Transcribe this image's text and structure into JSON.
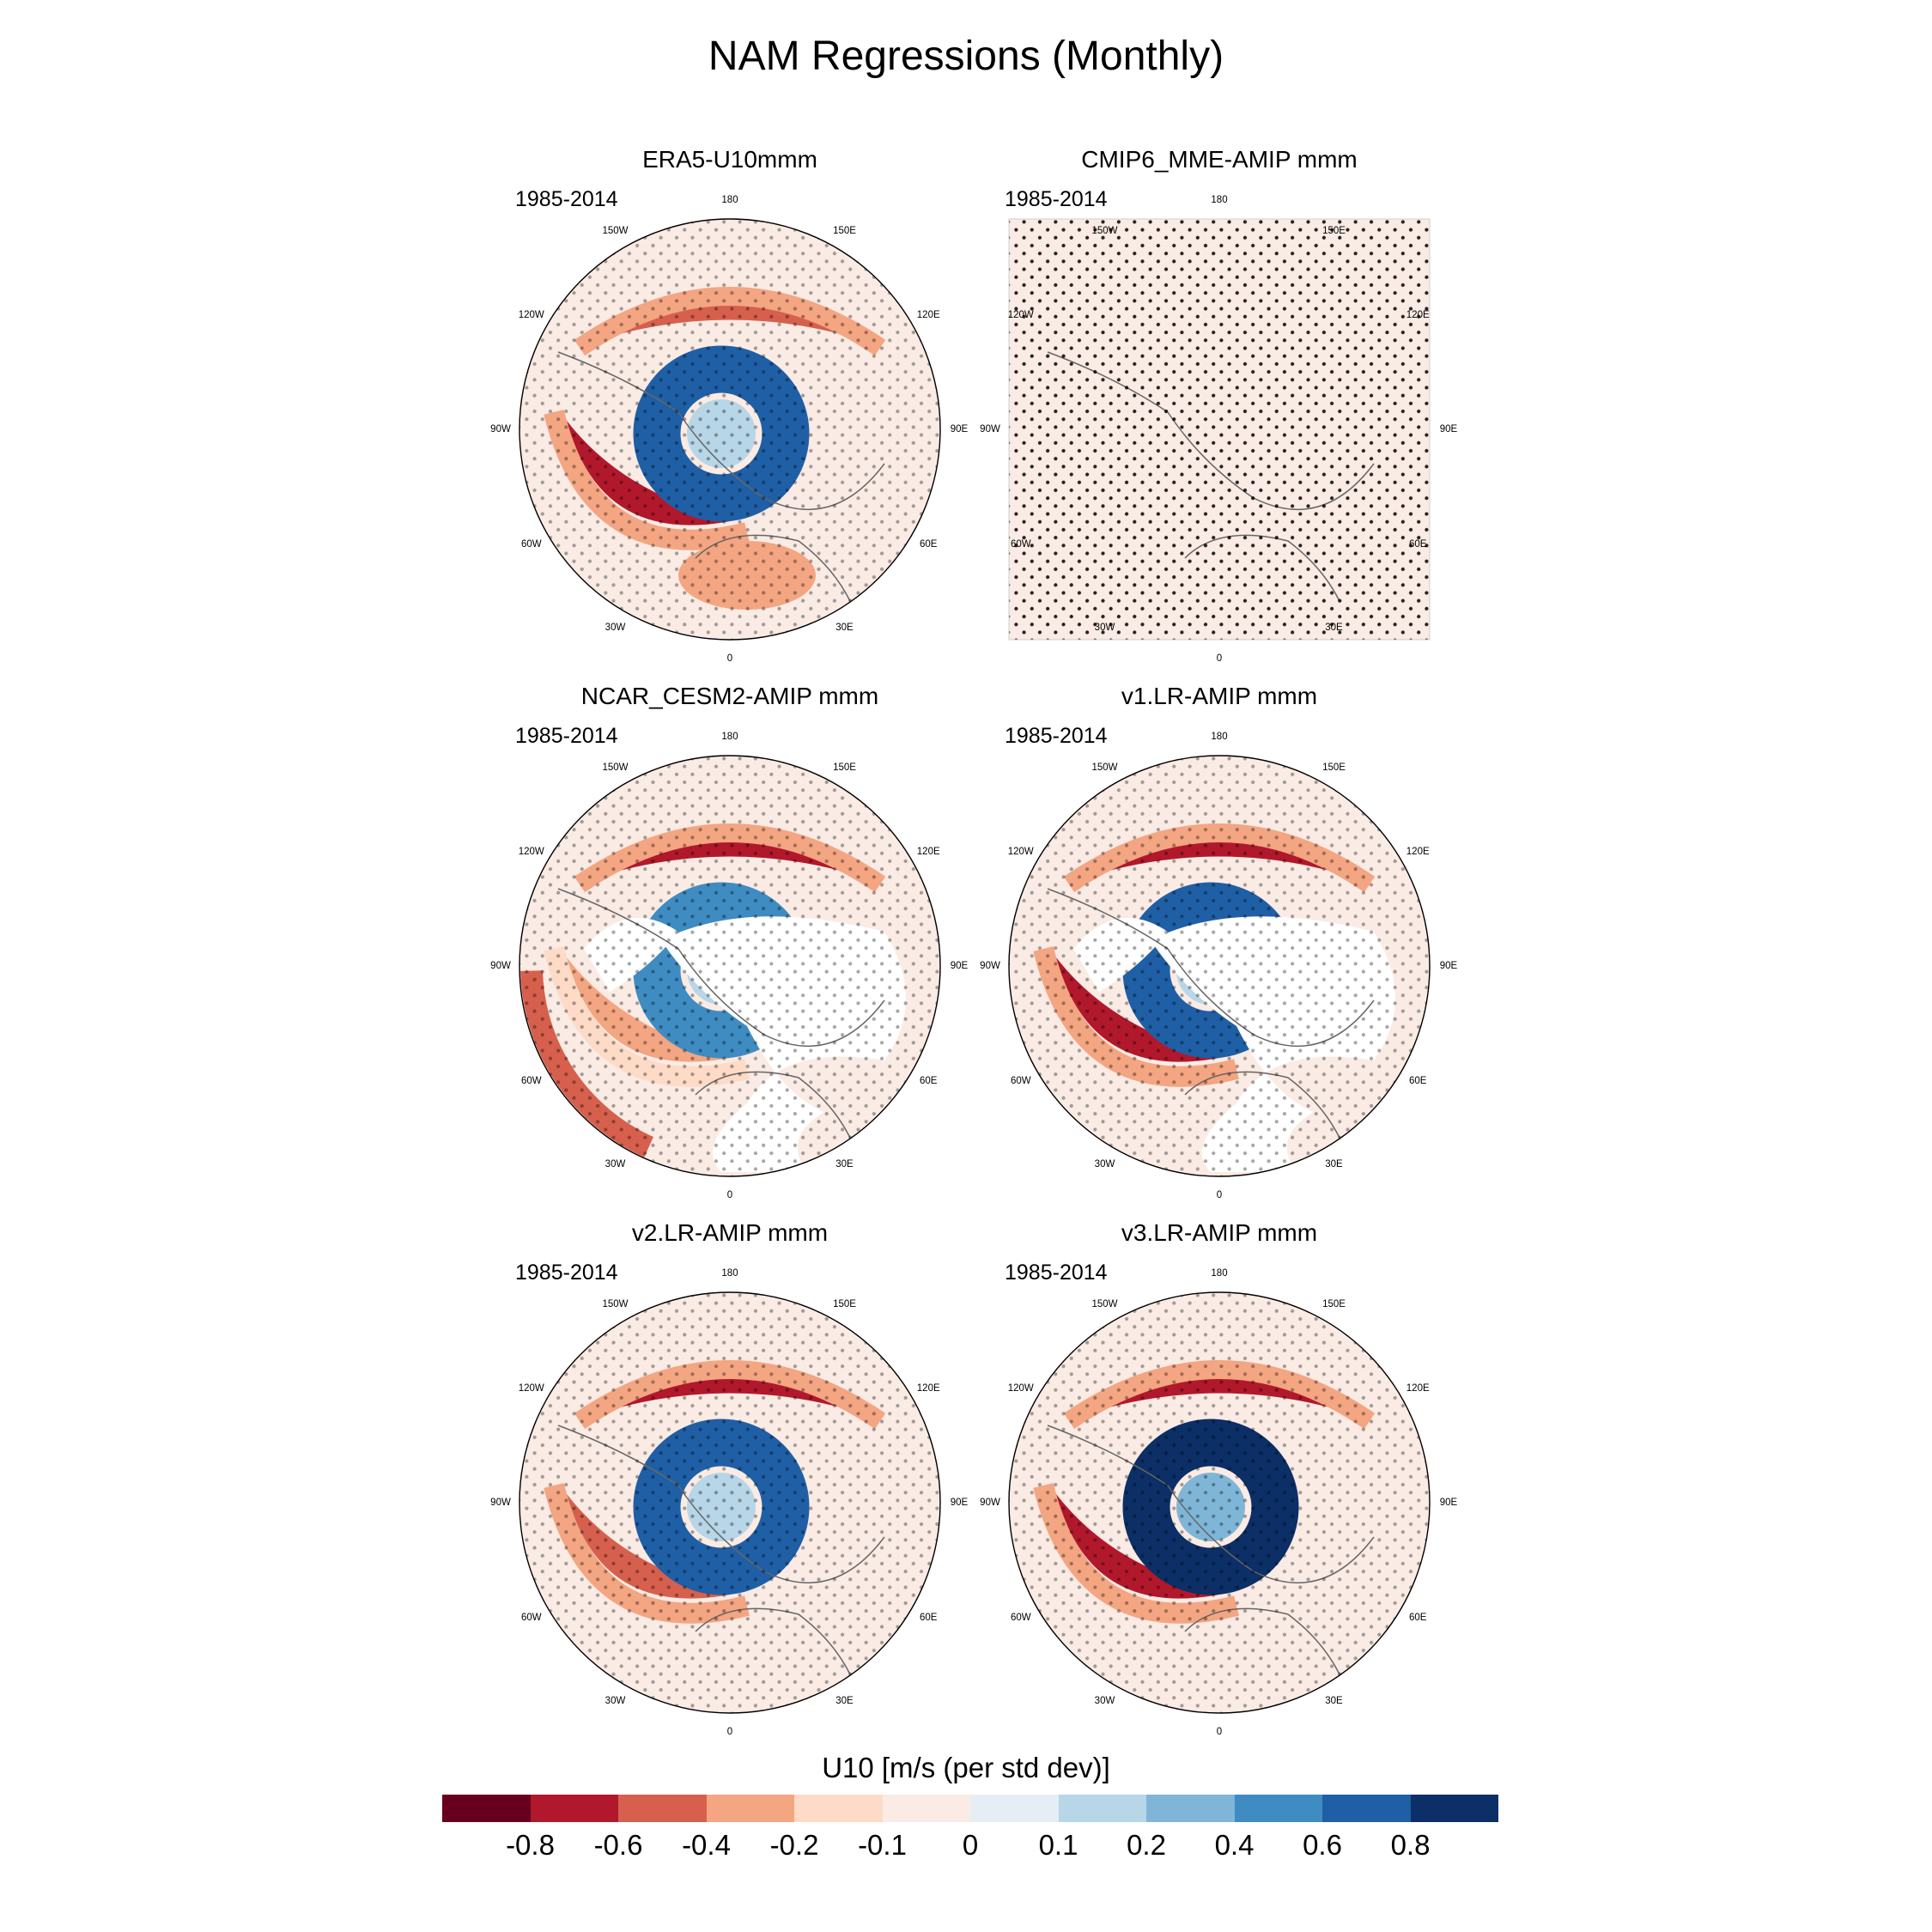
{
  "figure": {
    "title": "NAM Regressions (Monthly)",
    "colorbar_title": "U10 [m/s (per std dev)]"
  },
  "chart_data": {
    "type": "heatmap",
    "projection": "polar-stereographic",
    "title": "NAM Regressions (Monthly)",
    "variable": "U10 [m/s (per std dev)]",
    "colorbar": {
      "levels": [
        -0.8,
        -0.6,
        -0.4,
        -0.2,
        -0.1,
        0,
        0.1,
        0.2,
        0.4,
        0.6,
        0.8
      ],
      "tick_labels": [
        "-0.8",
        "-0.6",
        "-0.4",
        "-0.2",
        "-0.1",
        "0",
        "0.1",
        "0.2",
        "0.4",
        "0.6",
        "0.8"
      ],
      "colors": [
        "#67001f",
        "#b2182b",
        "#d6604d",
        "#f4a582",
        "#fddbc7",
        "#faebe4",
        "#e4eef4",
        "#b7d6e8",
        "#7fb6d8",
        "#3f8cc2",
        "#1f5fa6",
        "#0b2f66"
      ]
    },
    "longitude_labels": [
      "180",
      "150E",
      "120E",
      "90E",
      "60E",
      "30E",
      "0",
      "30W",
      "60W",
      "90W",
      "120W",
      "150W"
    ],
    "panels": [
      {
        "title": "ERA5-U10mmm",
        "period": "1985-2014",
        "frame": "circle",
        "pattern": {
          "subtropical_jet": -0.6,
          "polar_ring": 0.6,
          "atlantic_jet": -0.8,
          "atlantic_south": -0.3
        },
        "stippled": true
      },
      {
        "title": "CMIP6_MME-AMIP  mmm",
        "period": "1985-2014",
        "frame": "square",
        "pattern": {
          "uniform": -0.05
        },
        "stippled": true
      },
      {
        "title": "NCAR_CESM2-AMIP  mmm",
        "period": "1985-2014",
        "frame": "circle",
        "pattern": {
          "subtropical_jet": -0.8,
          "polar_ring": 0.4,
          "atlantic_jet": -0.4,
          "outer_band": -0.6,
          "land_masked": true
        },
        "stippled": true
      },
      {
        "title": "v1.LR-AMIP  mmm",
        "period": "1985-2014",
        "frame": "circle",
        "pattern": {
          "subtropical_jet": -0.8,
          "polar_ring": 0.6,
          "atlantic_jet": -0.8,
          "land_masked": true
        },
        "stippled": true
      },
      {
        "title": "v2.LR-AMIP  mmm",
        "period": "1985-2014",
        "frame": "circle",
        "pattern": {
          "subtropical_jet": -0.8,
          "polar_ring": 0.6,
          "atlantic_jet": -0.6
        },
        "stippled": true
      },
      {
        "title": "v3.LR-AMIP  mmm",
        "period": "1985-2014",
        "frame": "circle",
        "pattern": {
          "subtropical_jet": -0.8,
          "polar_ring": 0.8,
          "atlantic_jet": -0.8
        },
        "stippled": true
      }
    ]
  }
}
